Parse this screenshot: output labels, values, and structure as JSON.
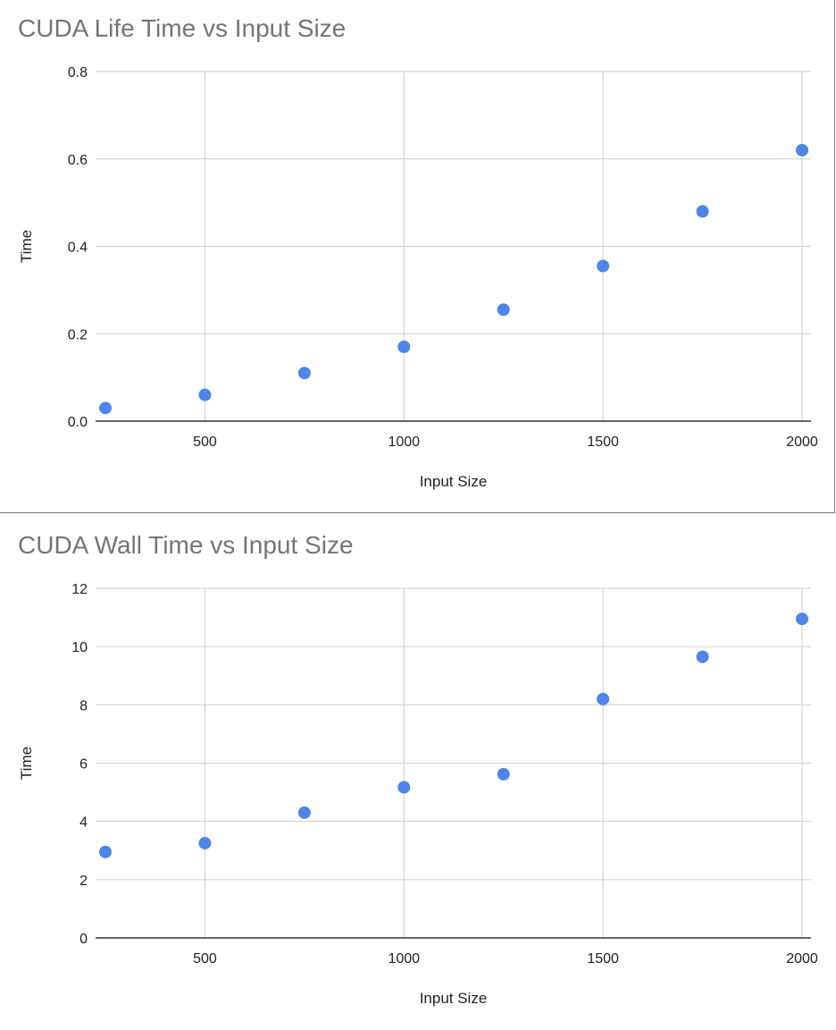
{
  "chart_data": [
    {
      "type": "scatter",
      "title": "CUDA Life Time vs Input Size",
      "xlabel": "Input Size",
      "ylabel": "Time",
      "x": [
        250,
        500,
        750,
        1000,
        1250,
        1500,
        1750,
        2000
      ],
      "y": [
        0.03,
        0.06,
        0.11,
        0.17,
        0.255,
        0.355,
        0.48,
        0.62
      ],
      "xlim": [
        250,
        2000
      ],
      "ylim": [
        0,
        0.8
      ],
      "xticks": [
        500,
        1000,
        1500,
        2000
      ],
      "xtick_labels": [
        "500",
        "1000",
        "1500",
        "2000"
      ],
      "yticks": [
        0,
        0.2,
        0.4,
        0.6,
        0.8
      ],
      "ytick_labels": [
        "0.0",
        "0.2",
        "0.4",
        "0.6",
        "0.8"
      ],
      "grid": true,
      "point_color": "#4f85e8"
    },
    {
      "type": "scatter",
      "title": "CUDA Wall Time vs Input Size",
      "xlabel": "Input Size",
      "ylabel": "Time",
      "x": [
        250,
        500,
        750,
        1000,
        1250,
        1500,
        1750,
        2000
      ],
      "y": [
        2.95,
        3.25,
        4.3,
        5.17,
        5.62,
        8.2,
        9.65,
        10.95
      ],
      "xlim": [
        250,
        2000
      ],
      "ylim": [
        0,
        12
      ],
      "xticks": [
        500,
        1000,
        1500,
        2000
      ],
      "xtick_labels": [
        "500",
        "1000",
        "1500",
        "2000"
      ],
      "yticks": [
        0,
        2,
        4,
        6,
        8,
        10,
        12
      ],
      "ytick_labels": [
        "0",
        "2",
        "4",
        "6",
        "8",
        "10",
        "12"
      ],
      "grid": true,
      "point_color": "#4f85e8"
    }
  ]
}
